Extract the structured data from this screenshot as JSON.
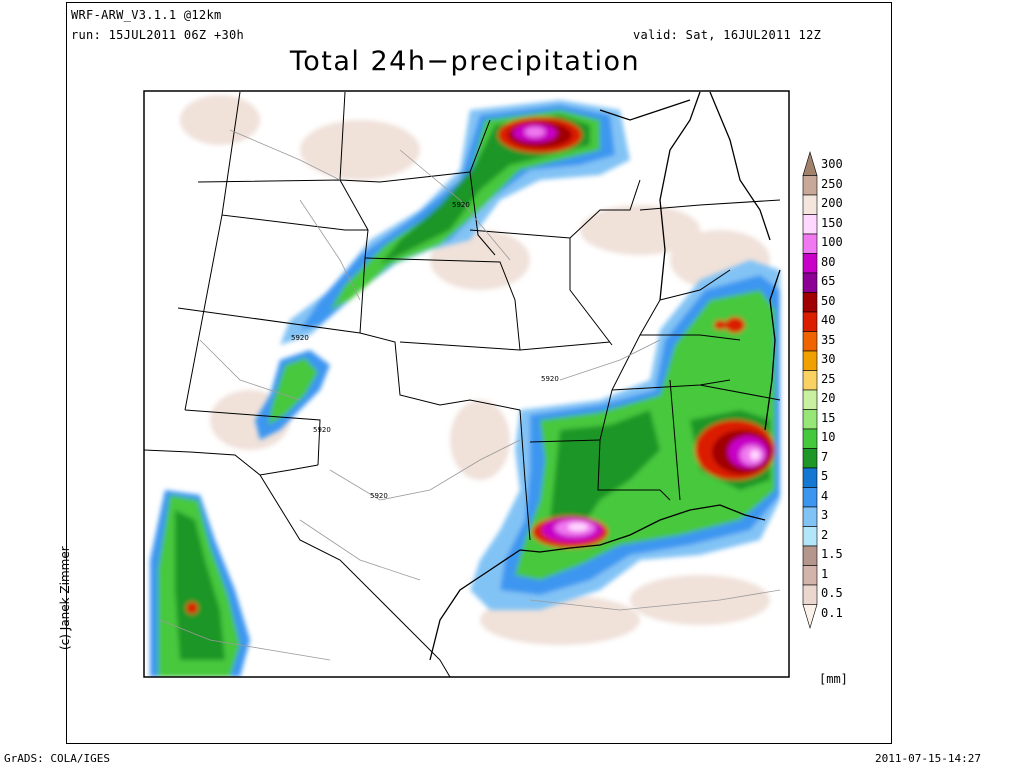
{
  "header": {
    "model": "WRF-ARW_V3.1.1 @12km",
    "run": "run: 15JUL2011 06Z +30h",
    "valid": "valid: Sat, 16JUL2011 12Z",
    "title": "Total 24h−precipitation"
  },
  "credit": "(c) Janek Zimmer",
  "footer": {
    "left": "GrADS: COLA/IGES",
    "right": "2011-07-15-14:27"
  },
  "colorbar": {
    "unit": "[mm]",
    "levels": [
      {
        "label": "300",
        "color": "#a0826d"
      },
      {
        "label": "250",
        "color": "#c8a898"
      },
      {
        "label": "200",
        "color": "#f4e6dc"
      },
      {
        "label": "150",
        "color": "#ffd8ff"
      },
      {
        "label": "100",
        "color": "#f078f0"
      },
      {
        "label": "80",
        "color": "#c800c8"
      },
      {
        "label": "65",
        "color": "#8c0096"
      },
      {
        "label": "50",
        "color": "#a00000"
      },
      {
        "label": "40",
        "color": "#dc1e00"
      },
      {
        "label": "35",
        "color": "#f06400"
      },
      {
        "label": "30",
        "color": "#f0a000"
      },
      {
        "label": "25",
        "color": "#fad264"
      },
      {
        "label": "20",
        "color": "#c8f0a0"
      },
      {
        "label": "15",
        "color": "#96e678"
      },
      {
        "label": "10",
        "color": "#46c83c"
      },
      {
        "label": "7",
        "color": "#1e9628"
      },
      {
        "label": "5",
        "color": "#1478d2"
      },
      {
        "label": "4",
        "color": "#3c96f0"
      },
      {
        "label": "3",
        "color": "#82c3f5"
      },
      {
        "label": "2",
        "color": "#b4e6fa"
      },
      {
        "label": "1.5",
        "color": "#b4968c"
      },
      {
        "label": "1",
        "color": "#d2b4aa"
      },
      {
        "label": "0.5",
        "color": "#ebd7cd"
      },
      {
        "label": "0.1",
        "color": "#fbf0ea"
      }
    ]
  },
  "contour_labels": [
    "5920",
    "5920",
    "5920",
    "5920",
    "5920"
  ]
}
